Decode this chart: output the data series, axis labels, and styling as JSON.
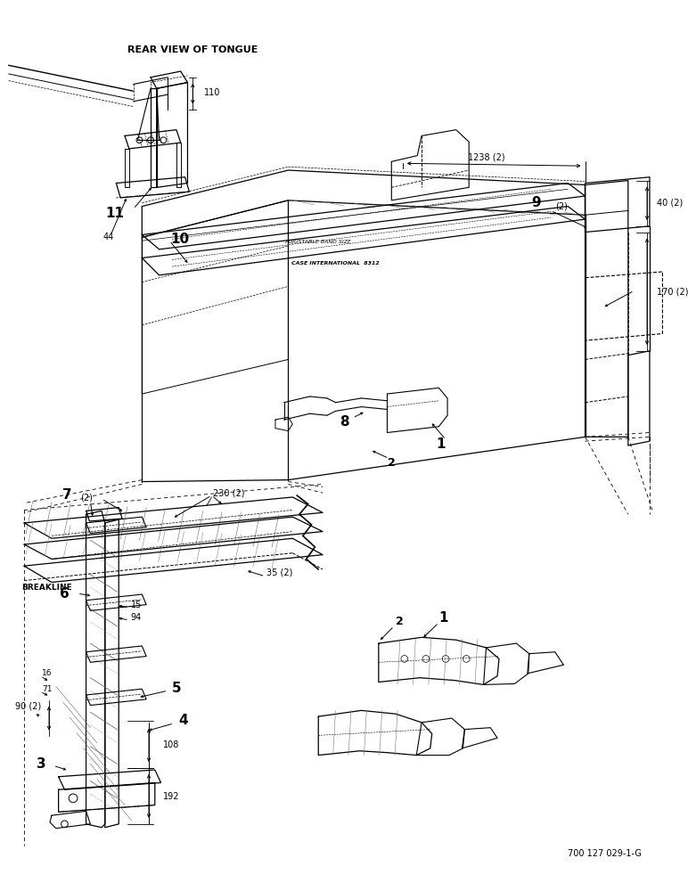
{
  "footer": "700 127 029-1-G",
  "bg_color": "#ffffff",
  "labels": {
    "rear_view": "REAR VIEW OF TONGUE",
    "breakline": "BREAKLINE",
    "part_110": "110",
    "part_11": "11",
    "part_44": "44",
    "part_10": "10",
    "part_9": "9",
    "part_9s": "(2)",
    "part_1238": "1238 (2)",
    "part_40": "40 (2)",
    "part_170": "170 (2)",
    "part_8": "8",
    "part_1": "1",
    "part_2": "2",
    "part_7": "7",
    "part_7s": "(2)",
    "part_230": "230 (2)",
    "part_6": "6",
    "part_15": "15",
    "part_94": "94",
    "part_35": "35 (2)",
    "part_16": "16",
    "part_71": "71",
    "part_90": "90 (2)",
    "part_5": "5",
    "part_4": "4",
    "part_3": "3",
    "part_108": "108",
    "part_192": "192"
  }
}
